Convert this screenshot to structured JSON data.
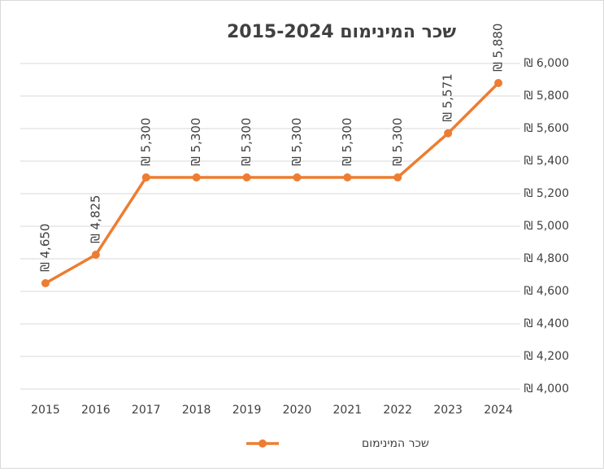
{
  "chart_data": {
    "type": "line",
    "title": "שכר המינימום 2015-2024",
    "categories": [
      "2015",
      "2016",
      "2017",
      "2018",
      "2019",
      "2020",
      "2021",
      "2022",
      "2023",
      "2024"
    ],
    "series": [
      {
        "name": "שכר המינימום",
        "color": "#ED7D31",
        "values": [
          4650,
          4825,
          5300,
          5300,
          5300,
          5300,
          5300,
          5300,
          5571,
          5880
        ],
        "value_labels": [
          "₪ 4,650",
          "₪ 4,825",
          "₪ 5,300",
          "₪ 5,300",
          "₪ 5,300",
          "₪ 5,300",
          "₪ 5,300",
          "₪ 5,300",
          "₪ 5,571",
          "₪ 5,880"
        ]
      }
    ],
    "ylim": [
      4000,
      6000
    ],
    "yticks": [
      {
        "value": 4000,
        "label": "₪ 4,000"
      },
      {
        "value": 4200,
        "label": "₪ 4,200"
      },
      {
        "value": 4400,
        "label": "₪ 4,400"
      },
      {
        "value": 4600,
        "label": "₪ 4,600"
      },
      {
        "value": 4800,
        "label": "₪ 4,800"
      },
      {
        "value": 5000,
        "label": "₪ 5,000"
      },
      {
        "value": 5200,
        "label": "₪ 5,200"
      },
      {
        "value": 5400,
        "label": "₪ 5,400"
      },
      {
        "value": 5600,
        "label": "₪ 5,600"
      },
      {
        "value": 5800,
        "label": "₪ 5,800"
      },
      {
        "value": 6000,
        "label": "₪ 6,000"
      }
    ],
    "grid": true,
    "y_axis_side": "right",
    "legend": "bottom"
  }
}
